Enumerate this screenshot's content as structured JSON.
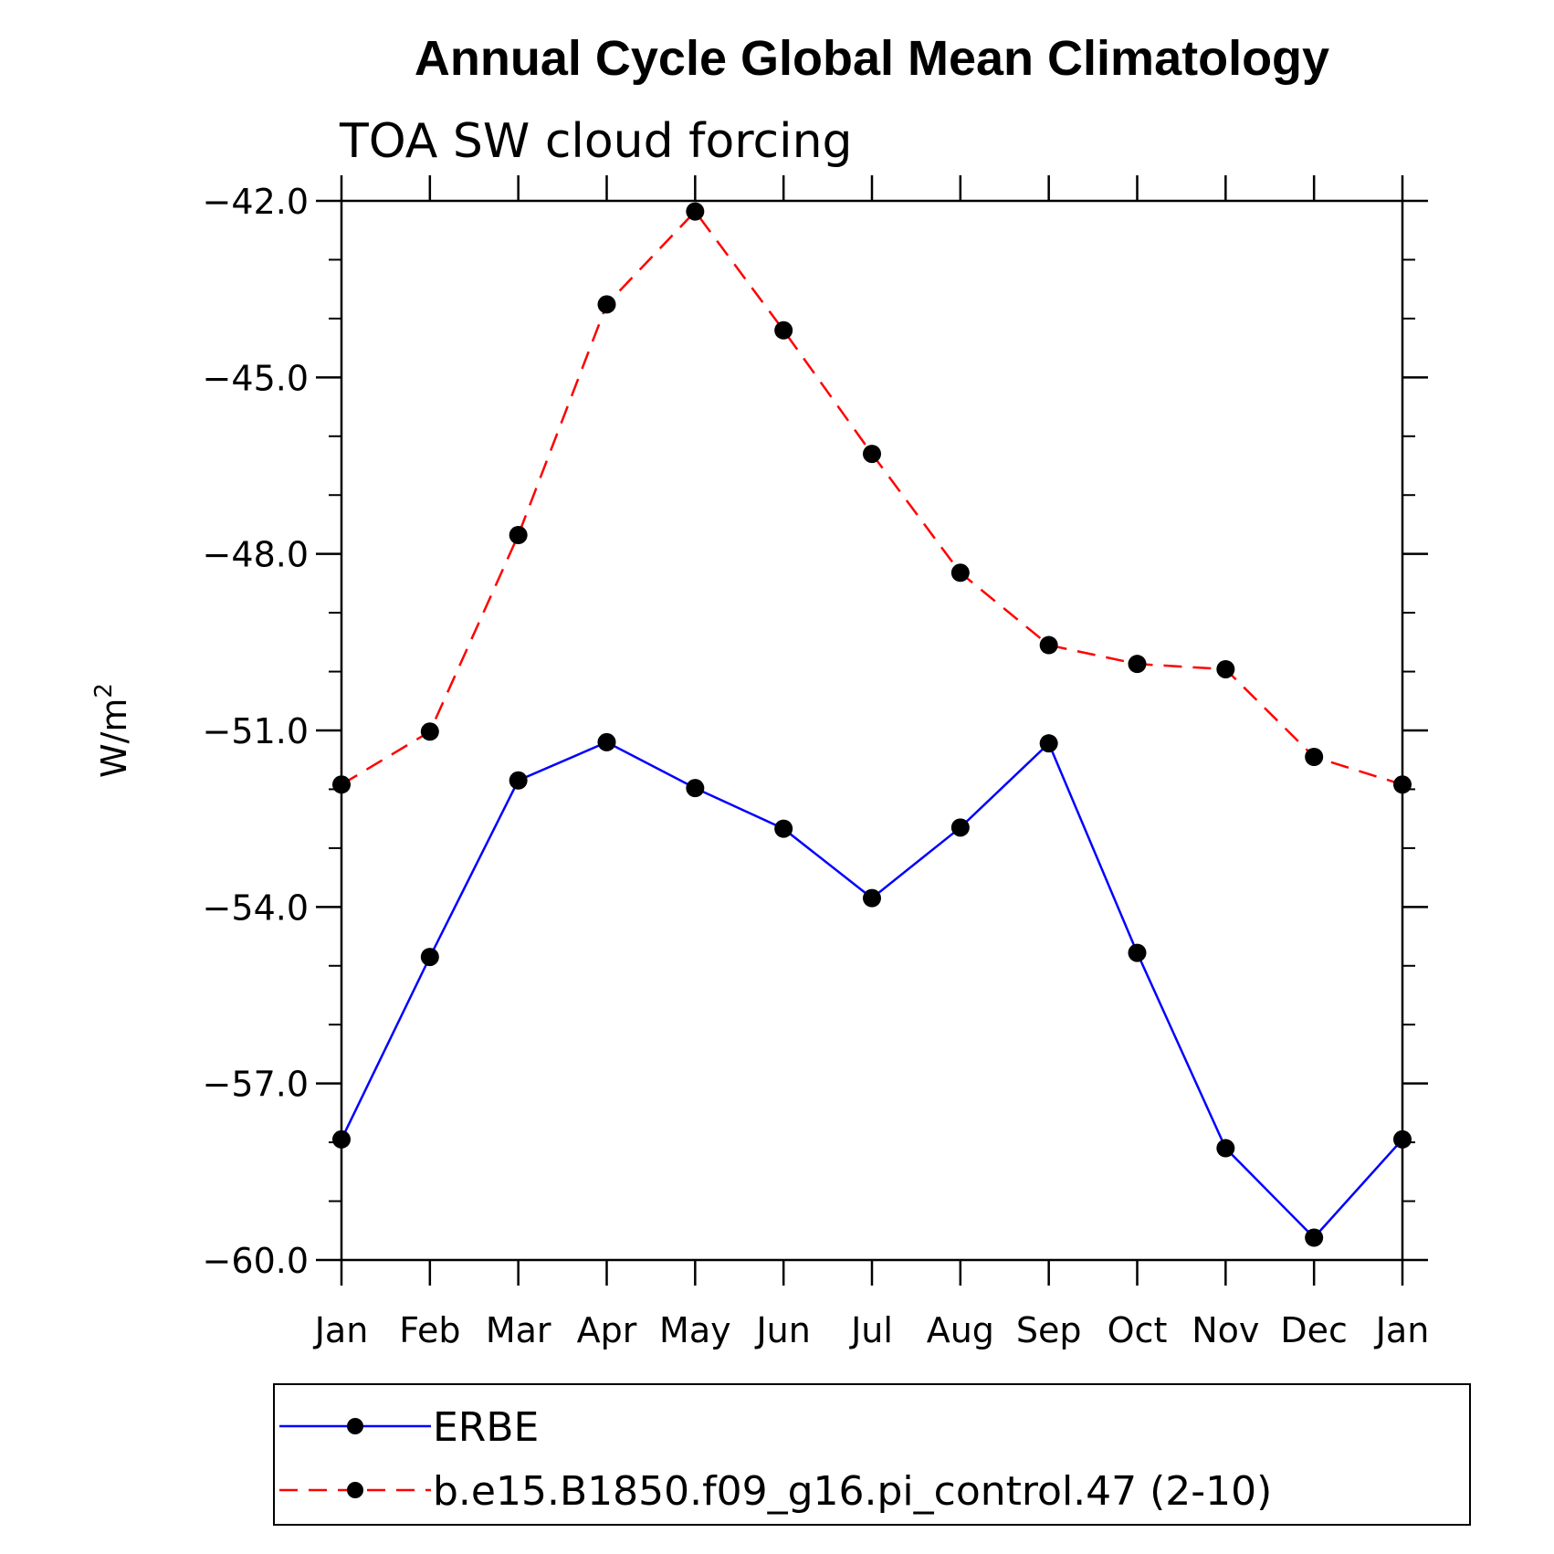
{
  "chart_data": {
    "type": "line",
    "title": "Annual Cycle Global Mean Climatology",
    "subtitle": "TOA SW cloud forcing",
    "ylabel": "W/m",
    "ylabel_superscript": "2",
    "xlabel": "",
    "categories": [
      "Jan",
      "Feb",
      "Mar",
      "Apr",
      "May",
      "Jun",
      "Jul",
      "Aug",
      "Sep",
      "Oct",
      "Nov",
      "Dec",
      "Jan"
    ],
    "ylim": [
      -60.0,
      -42.0
    ],
    "yticks": [
      "-60.0",
      "-57.0",
      "-54.0",
      "-51.0",
      "-48.0",
      "-45.0",
      "-42.0"
    ],
    "ytick_values": [
      -60,
      -57,
      -54,
      -51,
      -48,
      -45,
      -42
    ],
    "series": [
      {
        "name": "ERBE",
        "color": "#0000ff",
        "dash": "solid",
        "marker_color": "#000000",
        "values": [
          -57.95,
          -54.85,
          -51.85,
          -51.2,
          -51.98,
          -52.67,
          -53.85,
          -52.65,
          -51.22,
          -54.78,
          -58.1,
          -59.62,
          -57.95
        ]
      },
      {
        "name": "b.e15.B1850.f09_g16.pi_control.47 (2-10)",
        "color": "#ff0000",
        "dash": "dashed",
        "marker_color": "#000000",
        "values": [
          -51.92,
          -51.02,
          -47.68,
          -43.76,
          -42.18,
          -44.2,
          -46.3,
          -48.32,
          -49.55,
          -49.87,
          -49.96,
          -51.45,
          -51.92
        ]
      }
    ]
  }
}
